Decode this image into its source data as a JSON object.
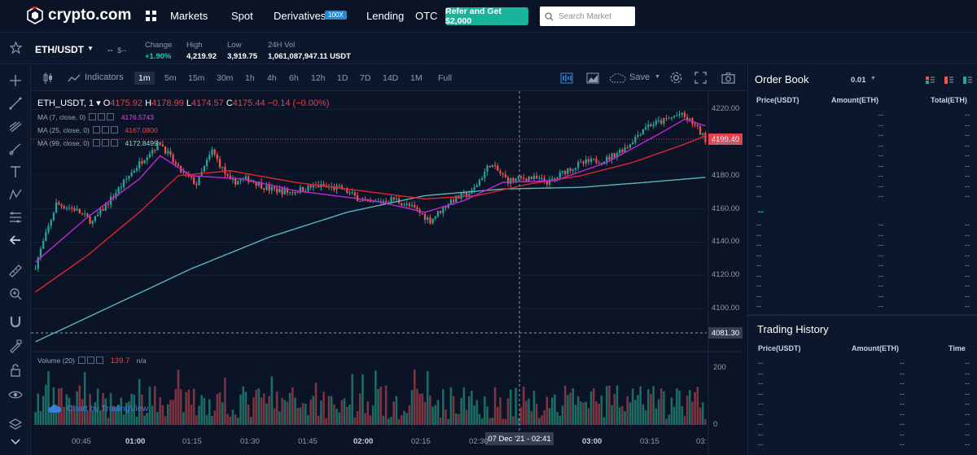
{
  "nav": {
    "logo": "crypto.com",
    "links": [
      "Markets",
      "Spot",
      "Derivatives",
      "Lending",
      "OTC"
    ],
    "derivatives_badge": "100X",
    "refer_label": "Refer and Get $2,000",
    "search_placeholder": "Search Market"
  },
  "ticker": {
    "pair": "ETH/USDT",
    "price": "--",
    "price_usd": "$--",
    "stats": [
      {
        "label": "Change",
        "value": "+1.90%"
      },
      {
        "label": "High",
        "value": "4,219.92"
      },
      {
        "label": "Low",
        "value": "3,919.75"
      },
      {
        "label": "24H Vol",
        "value": "1,061,087,947.11 USDT"
      }
    ]
  },
  "chart_toolbar": {
    "indicators_label": "Indicators",
    "timeframes": [
      "1m",
      "5m",
      "15m",
      "30m",
      "1h",
      "4h",
      "6h",
      "12h",
      "1D",
      "7D",
      "14D",
      "1M"
    ],
    "active_timeframe": "1m",
    "full_label": "Full",
    "save_label": "Save"
  },
  "chart": {
    "symbol": "ETH_USDT, 1",
    "open_label": "O",
    "open": "4175.92",
    "high_label": "H",
    "high": "4178.99",
    "low_label": "L",
    "low": "4174.57",
    "close_label": "C",
    "close": "4175.44",
    "change": "−0.14 (−0.00%)",
    "ma7_label": "MA (7, close, 0)",
    "ma7_value": "4176.5743",
    "ma25_label": "MA (25, close, 0)",
    "ma25_value": "4167.0800",
    "ma99_label": "MA (99, close, 0)",
    "ma99_value": "4172.8499",
    "current_price_tag": "4199.40",
    "cross_price_tag": "4081.30",
    "volume_label": "Volume (20)",
    "volume_value": "139.7",
    "volume_na": "n/a",
    "cross_time": "07 Dec '21 - 02:41",
    "credit": "Chart by TradingView",
    "colors": {
      "up": "#26a69a",
      "down": "#ef5350",
      "ma7": "#c026d3",
      "ma25": "#e0242e",
      "ma99": "#5fb3b3"
    }
  },
  "chart_data": {
    "type": "candlestick",
    "ylim": [
      4078,
      4226
    ],
    "yticks": [
      4220.0,
      4200.0,
      4180.0,
      4160.0,
      4140.0,
      4120.0,
      4100.0
    ],
    "ytick_labels": [
      "4220.00",
      "4200.00",
      "4180.00",
      "4160.00",
      "4140.00",
      "4120.00",
      "4100.00"
    ],
    "volume_ticks": [
      200,
      0
    ],
    "volume_tick_labels": [
      "200",
      "0"
    ],
    "x_labels": [
      "00:45",
      "01:00",
      "01:15",
      "01:30",
      "01:45",
      "02:00",
      "02:15",
      "02:30",
      "03:00",
      "03:15",
      "03:"
    ],
    "x_bold": [
      false,
      true,
      false,
      false,
      false,
      true,
      false,
      false,
      true,
      false,
      false
    ],
    "close_anchors": [
      [
        0,
        4126
      ],
      [
        8,
        4163
      ],
      [
        15,
        4160
      ],
      [
        22,
        4152
      ],
      [
        30,
        4168
      ],
      [
        36,
        4180
      ],
      [
        43,
        4193
      ],
      [
        48,
        4200
      ],
      [
        55,
        4184
      ],
      [
        62,
        4175
      ],
      [
        68,
        4195
      ],
      [
        75,
        4176
      ],
      [
        82,
        4178
      ],
      [
        90,
        4172
      ],
      [
        98,
        4170
      ],
      [
        108,
        4174
      ],
      [
        118,
        4172
      ],
      [
        128,
        4163
      ],
      [
        138,
        4166
      ],
      [
        146,
        4160
      ],
      [
        152,
        4153
      ],
      [
        160,
        4165
      ],
      [
        168,
        4170
      ],
      [
        175,
        4187
      ],
      [
        182,
        4177
      ],
      [
        190,
        4179
      ],
      [
        198,
        4176
      ],
      [
        205,
        4184
      ],
      [
        212,
        4188
      ],
      [
        220,
        4190
      ],
      [
        228,
        4198
      ],
      [
        235,
        4210
      ],
      [
        242,
        4213
      ],
      [
        248,
        4217
      ],
      [
        253,
        4212
      ],
      [
        258,
        4202
      ]
    ],
    "ma7": [
      [
        0,
        4128
      ],
      [
        20,
        4155
      ],
      [
        40,
        4178
      ],
      [
        48,
        4192
      ],
      [
        60,
        4180
      ],
      [
        80,
        4178
      ],
      [
        100,
        4171
      ],
      [
        130,
        4165
      ],
      [
        150,
        4158
      ],
      [
        165,
        4165
      ],
      [
        180,
        4176
      ],
      [
        200,
        4177
      ],
      [
        220,
        4188
      ],
      [
        240,
        4205
      ],
      [
        250,
        4214
      ],
      [
        258,
        4210
      ]
    ],
    "ma25": [
      [
        0,
        4110
      ],
      [
        20,
        4132
      ],
      [
        40,
        4158
      ],
      [
        55,
        4180
      ],
      [
        75,
        4183
      ],
      [
        100,
        4176
      ],
      [
        130,
        4170
      ],
      [
        150,
        4166
      ],
      [
        170,
        4168
      ],
      [
        190,
        4175
      ],
      [
        210,
        4180
      ],
      [
        230,
        4188
      ],
      [
        250,
        4199
      ],
      [
        258,
        4204
      ]
    ],
    "ma99": [
      [
        0,
        4080
      ],
      [
        30,
        4102
      ],
      [
        60,
        4124
      ],
      [
        90,
        4143
      ],
      [
        120,
        4158
      ],
      [
        150,
        4168
      ],
      [
        180,
        4172
      ],
      [
        210,
        4173
      ],
      [
        235,
        4176
      ],
      [
        258,
        4179
      ]
    ],
    "candle_count": 259
  },
  "orderbook": {
    "title": "Order Book",
    "precision": "0.01",
    "cols": [
      "Price(USDT)",
      "Amount(ETH)",
      "Total(ETH)"
    ],
    "mid": "--"
  },
  "history": {
    "title": "Trading History",
    "cols": [
      "Price(USDT)",
      "Amount(ETH)",
      "Time"
    ]
  }
}
